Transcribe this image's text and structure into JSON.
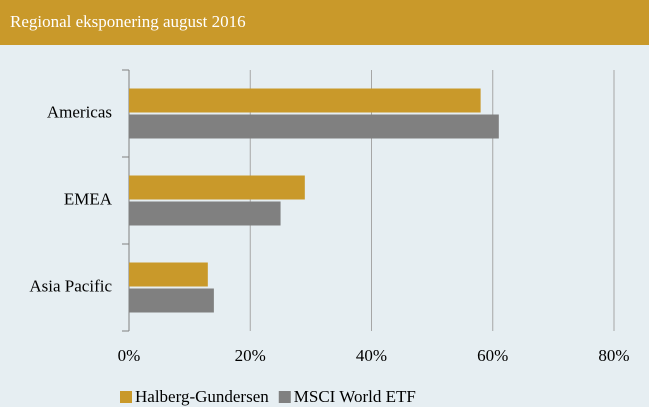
{
  "chart_data": {
    "type": "hbar",
    "title": "Regional eksponering august 2016",
    "categories": [
      "Americas",
      "EMEA",
      "Asia Pacific"
    ],
    "series": [
      {
        "name": "Halberg-Gundersen",
        "color": "#c9992a",
        "values": [
          58,
          29,
          13
        ]
      },
      {
        "name": "MSCI World ETF",
        "color": "#808080",
        "values": [
          61,
          25,
          14
        ]
      }
    ],
    "xlim": [
      0,
      80
    ],
    "xticks": [
      {
        "value": 0,
        "label": "0%"
      },
      {
        "value": 20,
        "label": "20%"
      },
      {
        "value": 40,
        "label": "40%"
      },
      {
        "value": 60,
        "label": "60%"
      },
      {
        "value": 80,
        "label": "80%"
      }
    ],
    "grid": true,
    "legend": "bottom"
  }
}
